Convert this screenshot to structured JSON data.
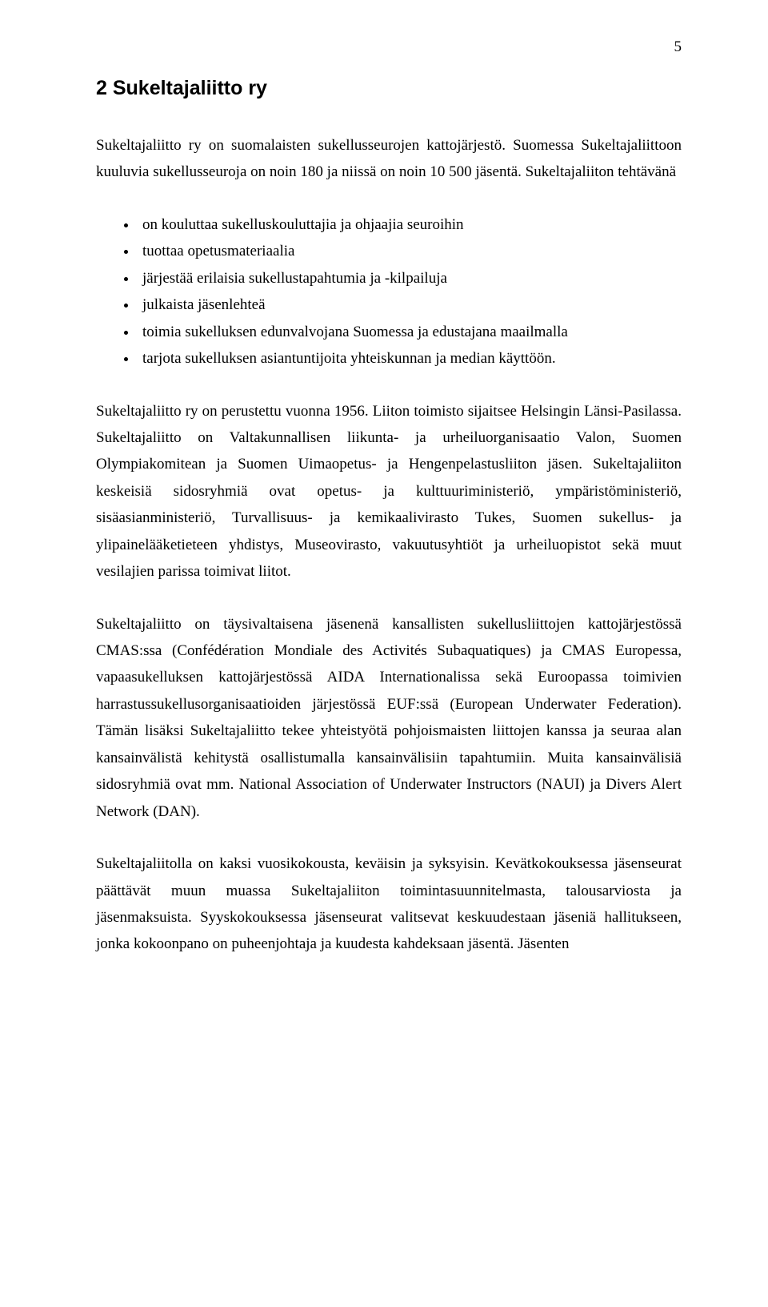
{
  "page_number": "5",
  "heading": "2 Sukeltajaliitto ry",
  "intro_paragraph": "Sukeltajaliitto ry on suomalaisten sukellusseurojen kattojärjestö. Suomessa Sukeltajaliittoon kuuluvia sukellusseuroja on noin 180 ja niissä on noin 10 500 jäsentä. Sukeltajaliiton tehtävänä",
  "bullet_items": [
    "on kouluttaa sukelluskouluttajia ja ohjaajia seuroihin",
    "tuottaa opetusmateriaalia",
    "järjestää erilaisia sukellustapahtumia ja -kilpailuja",
    "julkaista jäsenlehteä",
    "toimia sukelluksen edunvalvojana Suomessa ja edustajana maailmalla",
    "tarjota sukelluksen asiantuntijoita yhteiskunnan ja median käyttöön."
  ],
  "paragraphs": [
    "Sukeltajaliitto ry on perustettu vuonna 1956. Liiton toimisto sijaitsee Helsingin Länsi-Pasilassa. Sukeltajaliitto on Valtakunnallisen liikunta- ja urheiluorganisaatio Valon, Suomen Olympiakomitean ja Suomen Uimaopetus- ja Hengenpelastusliiton jäsen. Sukeltajaliiton keskeisiä sidosryhmiä ovat opetus- ja kulttuuriministeriö, ympäristöministeriö, sisäasianministeriö, Turvallisuus- ja kemikaalivirasto Tukes, Suomen sukellus- ja ylipainelääketieteen yhdistys, Museovirasto, vakuutusyhtiöt ja urheiluopistot sekä muut vesilajien parissa toimivat liitot.",
    "Sukeltajaliitto on täysivaltaisena jäsenenä kansallisten sukellusliittojen kattojärjestössä CMAS:ssa (Confédération Mondiale des Activités Subaquatiques) ja CMAS Europessa, vapaasukelluksen kattojärjestössä AIDA Internationalissa sekä Euroopassa toimivien harrastussukellusorganisaatioiden järjestössä EUF:ssä (European Underwater Federation). Tämän lisäksi Sukeltajaliitto tekee yhteistyötä pohjoismaisten liittojen kanssa ja seuraa alan kansainvälistä kehitystä osallistumalla kansainvälisiin tapahtumiin. Muita kansainvälisiä sidosryhmiä ovat mm. National Association of Underwater Instructors (NAUI) ja Divers Alert Network (DAN).",
    "Sukeltajaliitolla on kaksi vuosikokousta, keväisin ja syksyisin. Kevätkokouksessa jäsenseurat päättävät muun muassa Sukeltajaliiton toimintasuunnitelmasta, talousarviosta ja jäsenmaksuista. Syyskokouksessa jäsenseurat valitsevat keskuudestaan jäseniä hallitukseen, jonka kokoonpano on puheenjohtaja ja kuudesta kahdeksaan jäsentä. Jäsenten"
  ]
}
